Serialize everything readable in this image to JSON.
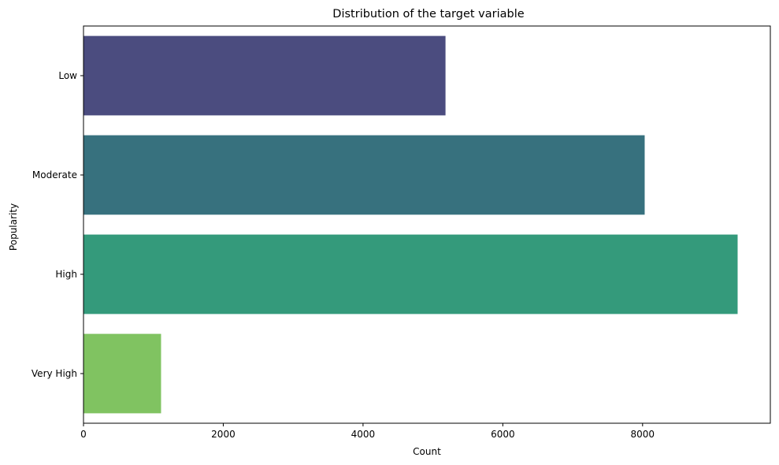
{
  "chart_data": {
    "type": "bar",
    "orientation": "horizontal",
    "title": "Distribution of the target variable",
    "xlabel": "Count",
    "ylabel": "Popularity",
    "categories": [
      "Low",
      "Moderate",
      "High",
      "Very High"
    ],
    "values": [
      5180,
      8030,
      9360,
      1110
    ],
    "colors": [
      "#4b4c7f",
      "#37717e",
      "#349a7b",
      "#80c361"
    ],
    "xlim": [
      0,
      9828
    ],
    "xticks": [
      0,
      2000,
      4000,
      6000,
      8000
    ],
    "grid": false,
    "legend": "none"
  }
}
